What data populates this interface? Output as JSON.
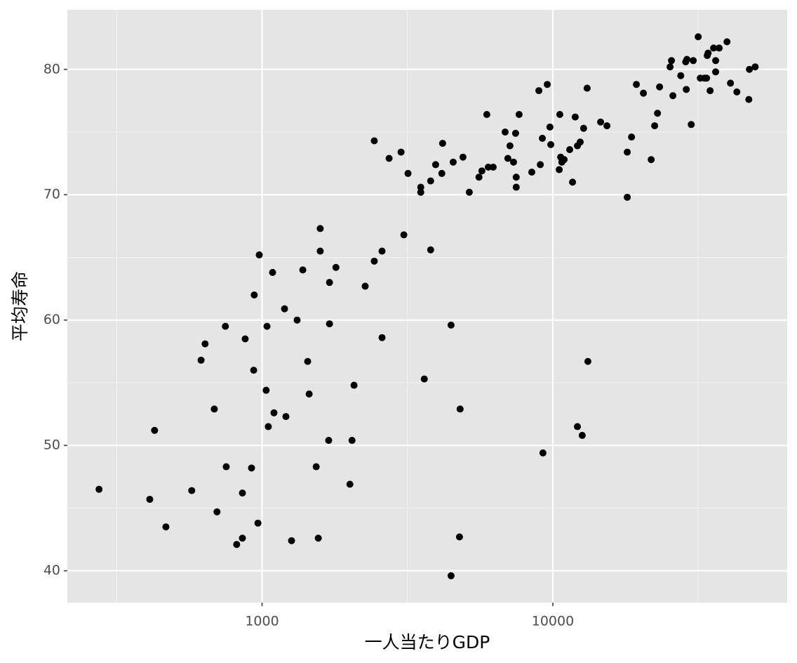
{
  "chart_data": {
    "type": "scatter",
    "xlabel": "一人当たりGDP",
    "ylabel": "平均寿命",
    "x_scale": "log",
    "grid": true,
    "color": "#000000",
    "background": "#e5e5e5",
    "xlim": [
      214,
      63970
    ],
    "ylim": [
      37.46,
      84.75
    ],
    "xticks": [
      1000,
      10000
    ],
    "xminorticks": [
      316.2,
      3162,
      31623
    ],
    "yticks": [
      40,
      50,
      60,
      70,
      80
    ],
    "yminorticks": [
      45,
      55,
      65,
      75
    ],
    "x": [
      275,
      427,
      411,
      467,
      573,
      700,
      685,
      617,
      637,
      748,
      753,
      818,
      856,
      856,
      875,
      920,
      936,
      940,
      968,
      978,
      1033,
      1040,
      1051,
      1087,
      1099,
      1195,
      1208,
      1263,
      1320,
      1381,
      1435,
      1452,
      1535,
      1561,
      1585,
      1585,
      1695,
      1706,
      1706,
      1795,
      2005,
      2039,
      2072,
      2263,
      2432,
      2586,
      2586,
      2432,
      2735,
      3006,
      3074,
      3177,
      3514,
      3514,
      3614,
      3800,
      3800,
      3953,
      4152,
      4178,
      4467,
      4467,
      4543,
      4775,
      4799,
      4909,
      5161,
      5572,
      5702,
      5929,
      5998,
      6237,
      6855,
      7003,
      7122,
      7325,
      7448,
      7484,
      7484,
      7656,
      8465,
      8954,
      9057,
      9247,
      9204,
      9572,
      9772,
      9840,
      10520,
      10570,
      10640,
      10740,
      10940,
      11430,
      11690,
      11940,
      12150,
      12150,
      12420,
      12620,
      12760,
      13120,
      13200,
      14600,
      15350,
      18030,
      18030,
      18650,
      19380,
      20490,
      21790,
      22400,
      22910,
      23290,
      25310,
      25590,
      25880,
      27540,
      28640,
      28770,
      28920,
      30410,
      29920,
      31620,
      32150,
      33240,
      33970,
      34200,
      33800,
      34750,
      35730,
      36310,
      36310,
      37330,
      39720,
      40830,
      42950,
      47210,
      47430,
      49650
    ],
    "y": [
      46.5,
      51.2,
      45.7,
      43.5,
      46.4,
      44.7,
      52.9,
      56.8,
      58.1,
      59.5,
      48.3,
      42.1,
      42.6,
      46.2,
      58.5,
      48.2,
      56.0,
      62.0,
      43.8,
      65.2,
      54.4,
      59.5,
      51.5,
      63.8,
      52.6,
      60.9,
      52.3,
      42.4,
      60.0,
      64.0,
      56.7,
      54.1,
      48.3,
      42.6,
      67.3,
      65.5,
      50.4,
      59.7,
      63.0,
      64.2,
      46.9,
      50.4,
      54.8,
      62.7,
      64.7,
      65.5,
      58.6,
      74.3,
      72.9,
      73.4,
      66.8,
      71.7,
      70.6,
      70.2,
      55.3,
      71.1,
      65.6,
      72.4,
      71.7,
      74.1,
      39.6,
      59.6,
      72.6,
      42.7,
      52.9,
      73.0,
      70.2,
      71.4,
      71.9,
      76.4,
      72.2,
      72.2,
      75.0,
      72.9,
      73.9,
      72.6,
      74.9,
      71.4,
      70.6,
      76.4,
      71.8,
      78.3,
      72.4,
      49.4,
      74.5,
      78.8,
      75.4,
      74.0,
      72.0,
      76.4,
      73.0,
      72.6,
      72.8,
      73.6,
      71.0,
      76.2,
      51.5,
      73.9,
      74.2,
      50.8,
      75.3,
      78.5,
      56.7,
      75.8,
      75.5,
      73.4,
      69.8,
      74.6,
      78.8,
      78.1,
      72.8,
      75.5,
      76.5,
      78.6,
      80.2,
      80.7,
      77.9,
      79.5,
      80.6,
      78.4,
      80.8,
      80.7,
      75.6,
      82.6,
      79.3,
      79.3,
      81.1,
      81.3,
      79.3,
      78.3,
      81.7,
      80.7,
      79.8,
      81.7,
      82.2,
      78.9,
      78.2,
      77.6,
      80.0,
      80.2
    ]
  }
}
